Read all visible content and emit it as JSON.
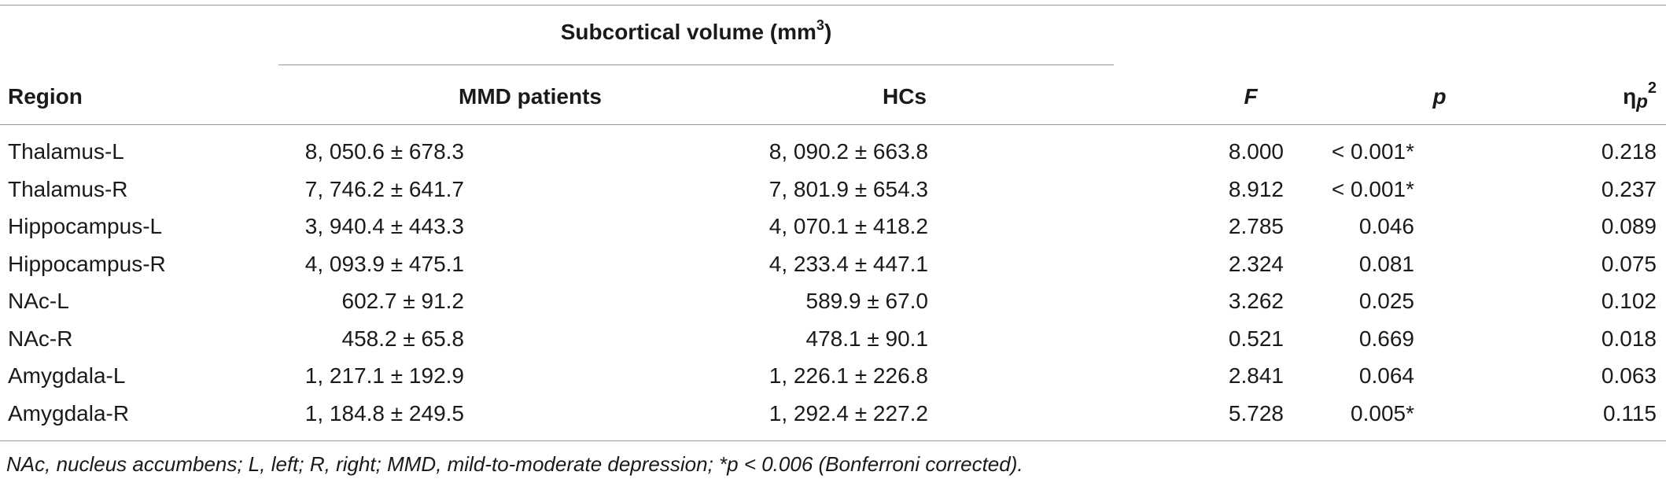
{
  "table": {
    "group_title": "Subcortical volume (mm",
    "group_title_sup": "3",
    "group_title_close": ")",
    "headers": {
      "region": "Region",
      "mmd": "MMD patients",
      "hcs": "HCs",
      "f": "F",
      "p": "p",
      "eta_symbol": "η",
      "eta_sub": "p",
      "eta_sup": "2"
    },
    "rows": [
      {
        "region": "Thalamus-L",
        "mmd": "8, 050.6 ± 678.3",
        "hcs": "8, 090.2 ± 663.8",
        "f": "8.000",
        "p": "< 0.001*",
        "eta": "0.218"
      },
      {
        "region": "Thalamus-R",
        "mmd": "7, 746.2 ± 641.7",
        "hcs": "7, 801.9 ± 654.3",
        "f": "8.912",
        "p": "< 0.001*",
        "eta": "0.237"
      },
      {
        "region": "Hippocampus-L",
        "mmd": "3, 940.4 ± 443.3",
        "hcs": "4, 070.1 ± 418.2",
        "f": "2.785",
        "p": "0.046",
        "eta": "0.089"
      },
      {
        "region": "Hippocampus-R",
        "mmd": "4, 093.9 ± 475.1",
        "hcs": "4, 233.4 ± 447.1",
        "f": "2.324",
        "p": "0.081",
        "eta": "0.075"
      },
      {
        "region": "NAc-L",
        "mmd": "602.7 ± 91.2",
        "hcs": "589.9 ± 67.0",
        "f": "3.262",
        "p": "0.025",
        "eta": "0.102"
      },
      {
        "region": "NAc-R",
        "mmd": "458.2 ± 65.8",
        "hcs": "478.1 ± 90.1",
        "f": "0.521",
        "p": "0.669",
        "eta": "0.018"
      },
      {
        "region": "Amygdala-L",
        "mmd": "1, 217.1 ± 192.9",
        "hcs": "1, 226.1 ± 226.8",
        "f": "2.841",
        "p": "0.064",
        "eta": "0.063"
      },
      {
        "region": "Amygdala-R",
        "mmd": "1, 184.8 ± 249.5",
        "hcs": "1, 292.4 ± 227.2",
        "f": "5.728",
        "p": "0.005*",
        "eta": "0.115"
      }
    ],
    "footnote": "NAc, nucleus accumbens; L, left; R, right; MMD, mild-to-moderate depression; *p < 0.006 (Bonferroni corrected)."
  }
}
